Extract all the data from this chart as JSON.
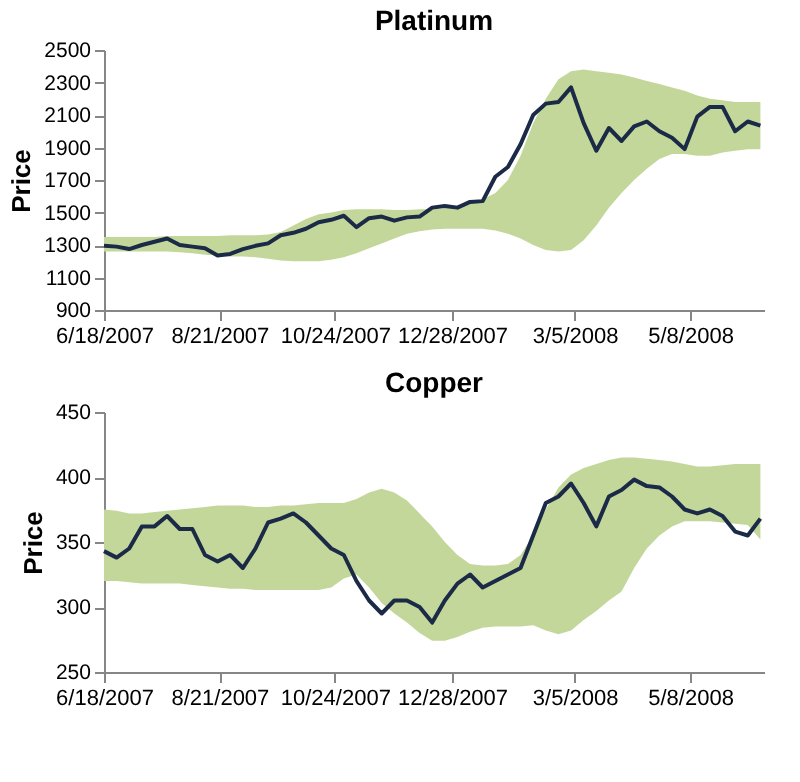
{
  "chart_data": [
    {
      "type": "line",
      "title": "Platinum",
      "ylabel": "Price",
      "x": [
        "2007-06-18",
        "2007-06-25",
        "2007-07-02",
        "2007-07-09",
        "2007-07-16",
        "2007-07-23",
        "2007-07-30",
        "2007-08-06",
        "2007-08-13",
        "2007-08-20",
        "2007-08-27",
        "2007-09-03",
        "2007-09-10",
        "2007-09-17",
        "2007-09-24",
        "2007-10-01",
        "2007-10-08",
        "2007-10-15",
        "2007-10-22",
        "2007-10-29",
        "2007-11-05",
        "2007-11-12",
        "2007-11-19",
        "2007-11-26",
        "2007-12-03",
        "2007-12-10",
        "2007-12-17",
        "2007-12-24",
        "2007-12-31",
        "2008-01-07",
        "2008-01-14",
        "2008-01-21",
        "2008-01-28",
        "2008-02-04",
        "2008-02-11",
        "2008-02-18",
        "2008-02-25",
        "2008-03-03",
        "2008-03-10",
        "2008-03-17",
        "2008-03-24",
        "2008-03-31",
        "2008-04-07",
        "2008-04-14",
        "2008-04-21",
        "2008-04-28",
        "2008-05-05",
        "2008-05-12",
        "2008-05-19",
        "2008-05-26",
        "2008-06-02",
        "2008-06-09",
        "2008-06-16"
      ],
      "series": [
        {
          "color": "#1b2a47",
          "values": [
            1295,
            1290,
            1275,
            1300,
            1320,
            1340,
            1300,
            1290,
            1280,
            1235,
            1245,
            1275,
            1295,
            1310,
            1360,
            1375,
            1400,
            1440,
            1455,
            1480,
            1410,
            1465,
            1475,
            1450,
            1470,
            1475,
            1530,
            1540,
            1530,
            1565,
            1570,
            1720,
            1780,
            1920,
            2100,
            2170,
            2180,
            2270,
            2050,
            1880,
            2020,
            1940,
            2030,
            2060,
            2000,
            1960,
            1890,
            2090,
            2150,
            2150,
            2000,
            2060,
            2035
          ],
          "upper": [
            1350,
            1350,
            1350,
            1350,
            1350,
            1355,
            1355,
            1355,
            1355,
            1355,
            1360,
            1360,
            1360,
            1365,
            1380,
            1420,
            1460,
            1490,
            1500,
            1515,
            1520,
            1520,
            1520,
            1515,
            1515,
            1520,
            1520,
            1525,
            1540,
            1560,
            1580,
            1620,
            1700,
            1850,
            2050,
            2200,
            2320,
            2370,
            2380,
            2370,
            2360,
            2350,
            2330,
            2310,
            2290,
            2270,
            2250,
            2220,
            2200,
            2190,
            2180,
            2180,
            2180
          ],
          "lower": [
            1260,
            1260,
            1260,
            1260,
            1260,
            1260,
            1255,
            1250,
            1240,
            1235,
            1230,
            1230,
            1225,
            1215,
            1205,
            1200,
            1200,
            1200,
            1210,
            1225,
            1250,
            1280,
            1310,
            1340,
            1370,
            1385,
            1395,
            1400,
            1400,
            1400,
            1400,
            1390,
            1370,
            1340,
            1300,
            1270,
            1260,
            1270,
            1330,
            1420,
            1530,
            1620,
            1700,
            1770,
            1830,
            1860,
            1860,
            1850,
            1850,
            1870,
            1880,
            1890,
            1890
          ]
        }
      ],
      "xlim": [
        "2007-06-18",
        "2008-06-18"
      ],
      "xticks": [
        {
          "value": "2007-06-18",
          "label": "6/18/2007"
        },
        {
          "value": "2007-08-21",
          "label": "8/21/2007"
        },
        {
          "value": "2007-10-24",
          "label": "10/24/2007"
        },
        {
          "value": "2007-12-28",
          "label": "12/28/2007"
        },
        {
          "value": "2008-03-05",
          "label": "3/5/2008"
        },
        {
          "value": "2008-05-08",
          "label": "5/8/2008"
        }
      ],
      "ylim": [
        900,
        2500
      ],
      "yticks": [
        900,
        1100,
        1300,
        1500,
        1700,
        1900,
        2100,
        2300,
        2500
      ]
    },
    {
      "type": "line",
      "title": "Copper",
      "ylabel": "Price",
      "x": [
        "2007-06-18",
        "2007-06-25",
        "2007-07-02",
        "2007-07-09",
        "2007-07-16",
        "2007-07-23",
        "2007-07-30",
        "2007-08-06",
        "2007-08-13",
        "2007-08-20",
        "2007-08-27",
        "2007-09-03",
        "2007-09-10",
        "2007-09-17",
        "2007-09-24",
        "2007-10-01",
        "2007-10-08",
        "2007-10-15",
        "2007-10-22",
        "2007-10-29",
        "2007-11-05",
        "2007-11-12",
        "2007-11-19",
        "2007-11-26",
        "2007-12-03",
        "2007-12-10",
        "2007-12-17",
        "2007-12-24",
        "2007-12-31",
        "2008-01-07",
        "2008-01-14",
        "2008-01-21",
        "2008-01-28",
        "2008-02-04",
        "2008-02-11",
        "2008-02-18",
        "2008-02-25",
        "2008-03-03",
        "2008-03-10",
        "2008-03-17",
        "2008-03-24",
        "2008-03-31",
        "2008-04-07",
        "2008-04-14",
        "2008-04-21",
        "2008-04-28",
        "2008-05-05",
        "2008-05-12",
        "2008-05-19",
        "2008-05-26",
        "2008-06-02",
        "2008-06-09",
        "2008-06-16"
      ],
      "series": [
        {
          "color": "#1b2a47",
          "values": [
            343,
            338,
            345,
            362,
            362,
            370,
            360,
            360,
            340,
            335,
            340,
            330,
            345,
            365,
            368,
            372,
            365,
            355,
            345,
            340,
            320,
            305,
            295,
            305,
            305,
            300,
            288,
            305,
            318,
            325,
            315,
            320,
            325,
            330,
            355,
            380,
            385,
            395,
            380,
            362,
            385,
            390,
            398,
            393,
            392,
            385,
            375,
            372,
            375,
            370,
            358,
            355,
            368
          ],
          "upper": [
            375,
            374,
            372,
            372,
            373,
            374,
            375,
            376,
            377,
            378,
            378,
            378,
            377,
            377,
            378,
            378,
            379,
            380,
            380,
            380,
            383,
            388,
            391,
            388,
            382,
            372,
            362,
            350,
            340,
            333,
            332,
            332,
            333,
            340,
            355,
            375,
            392,
            402,
            407,
            410,
            413,
            415,
            415,
            414,
            413,
            412,
            410,
            408,
            408,
            409,
            410,
            410,
            410
          ],
          "lower": [
            320,
            320,
            319,
            318,
            318,
            318,
            318,
            317,
            316,
            315,
            314,
            314,
            313,
            313,
            313,
            313,
            313,
            313,
            315,
            322,
            325,
            315,
            303,
            295,
            288,
            280,
            274,
            274,
            277,
            281,
            284,
            285,
            285,
            285,
            286,
            282,
            279,
            282,
            290,
            297,
            305,
            312,
            330,
            345,
            355,
            362,
            366,
            366,
            366,
            365,
            364,
            363,
            352
          ]
        }
      ],
      "xlim": [
        "2007-06-18",
        "2008-06-18"
      ],
      "xticks": [
        {
          "value": "2007-06-18",
          "label": "6/18/2007"
        },
        {
          "value": "2007-08-21",
          "label": "8/21/2007"
        },
        {
          "value": "2007-10-24",
          "label": "10/24/2007"
        },
        {
          "value": "2007-12-28",
          "label": "12/28/2007"
        },
        {
          "value": "2008-03-05",
          "label": "3/5/2008"
        },
        {
          "value": "2008-05-08",
          "label": "5/8/2008"
        }
      ],
      "ylim": [
        250,
        450
      ],
      "yticks": [
        250,
        300,
        350,
        400,
        450
      ]
    }
  ]
}
